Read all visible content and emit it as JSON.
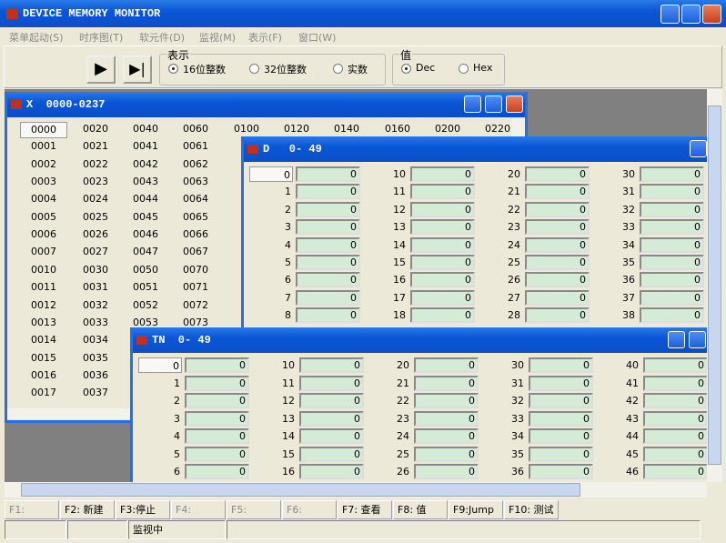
{
  "window_title": "DEVICE MEMORY MONITOR",
  "menu": [
    "菜单起动(S)",
    "时序图(T)",
    "软元件(D)",
    "监视(M)",
    "表示(F)",
    "窗口(W)"
  ],
  "toolbar": {
    "display_group": {
      "title": "表示",
      "options": [
        "16位整数",
        "32位整数",
        "实数"
      ],
      "selected": 0
    },
    "value_group": {
      "title": "值",
      "options": [
        "Dec",
        "Hex"
      ],
      "selected": 0
    }
  },
  "windows": [
    {
      "title": "X  0000-0237",
      "columns": [
        [
          "0000",
          "0001",
          "0002",
          "0003",
          "0004",
          "0005",
          "0006",
          "0007",
          "0010",
          "0011",
          "0012",
          "0013",
          "0014",
          "0015",
          "0016",
          "0017"
        ],
        [
          "0020",
          "0021",
          "0022",
          "0023",
          "0024",
          "0025",
          "0026",
          "0027",
          "0030",
          "0031",
          "0032",
          "0033",
          "0034",
          "0035",
          "0036",
          "0037"
        ],
        [
          "0040",
          "0041",
          "0042",
          "0043",
          "0044",
          "0045",
          "0046",
          "0047",
          "0050",
          "0051",
          "0052",
          "0053"
        ],
        [
          "0060",
          "0061",
          "0062",
          "0063",
          "0064",
          "0065",
          "0066",
          "0067",
          "0070",
          "0071",
          "0072",
          "0073"
        ],
        [
          "0100"
        ],
        [
          "0120"
        ],
        [
          "0140"
        ],
        [
          "0160"
        ],
        [
          "0200"
        ],
        [
          "0220"
        ]
      ]
    },
    {
      "title": "D   0- 49",
      "columns": [
        {
          "labels": [
            0,
            1,
            2,
            3,
            4,
            5,
            6,
            7,
            8
          ],
          "values": [
            0,
            0,
            0,
            0,
            0,
            0,
            0,
            0,
            0
          ]
        },
        {
          "labels": [
            10,
            11,
            12,
            13,
            14,
            15,
            16,
            17,
            18
          ],
          "values": [
            0,
            0,
            0,
            0,
            0,
            0,
            0,
            0,
            0
          ]
        },
        {
          "labels": [
            20,
            21,
            22,
            23,
            24,
            25,
            26,
            27,
            28
          ],
          "values": [
            0,
            0,
            0,
            0,
            0,
            0,
            0,
            0,
            0
          ]
        },
        {
          "labels": [
            30,
            31,
            32,
            33,
            34,
            35,
            36,
            37,
            38
          ],
          "values": [
            0,
            0,
            0,
            0,
            0,
            0,
            0,
            0,
            0
          ]
        }
      ]
    },
    {
      "title": "TN  0- 49",
      "columns": [
        {
          "labels": [
            0,
            1,
            2,
            3,
            4,
            5,
            6
          ],
          "values": [
            0,
            0,
            0,
            0,
            0,
            0,
            0
          ]
        },
        {
          "labels": [
            10,
            11,
            12,
            13,
            14,
            15,
            16
          ],
          "values": [
            0,
            0,
            0,
            0,
            0,
            0,
            0
          ]
        },
        {
          "labels": [
            20,
            21,
            22,
            23,
            24,
            25,
            26
          ],
          "values": [
            0,
            0,
            0,
            0,
            0,
            0,
            0
          ]
        },
        {
          "labels": [
            30,
            31,
            32,
            33,
            34,
            35,
            36
          ],
          "values": [
            0,
            0,
            0,
            0,
            0,
            0,
            0
          ]
        },
        {
          "labels": [
            40,
            41,
            42,
            43,
            44,
            45,
            46
          ],
          "values": [
            0,
            0,
            0,
            0,
            0,
            0,
            0
          ]
        }
      ]
    }
  ],
  "function_keys": [
    "F1:",
    "F2: 新建",
    "F3:停止",
    "F4:",
    "F5:",
    "F6:",
    "F7: 查看",
    "F8: 值",
    "F9:Jump",
    "F10: 测试"
  ],
  "status": "监视中"
}
